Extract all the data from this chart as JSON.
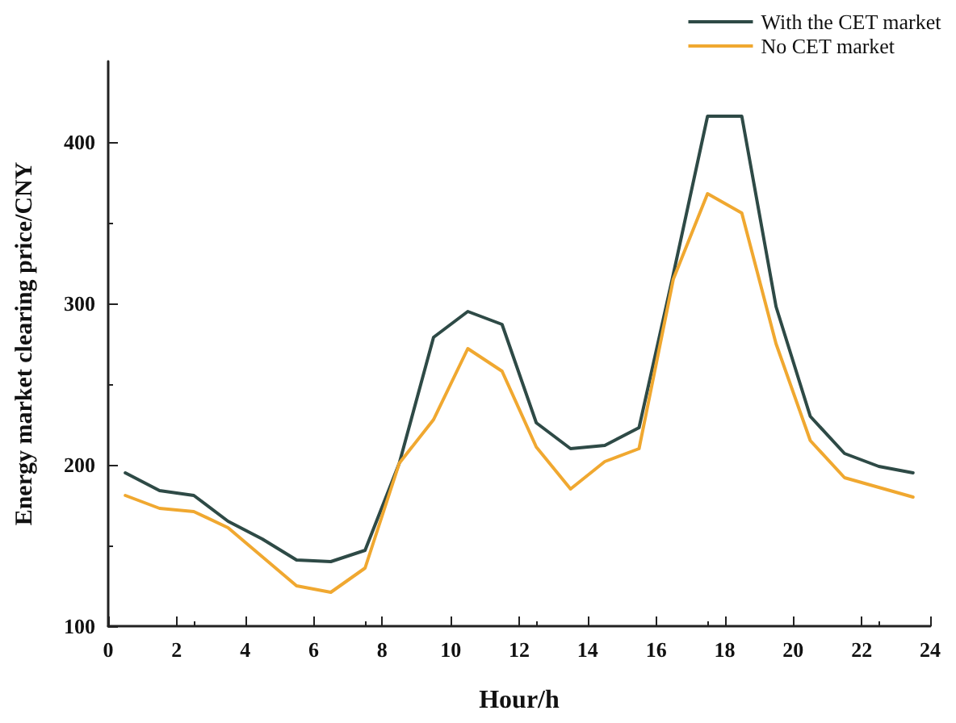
{
  "chart_data": {
    "type": "line",
    "xlabel": "Hour/h",
    "ylabel": "Energy market clearing price/CNY",
    "x": [
      0.5,
      1.5,
      2.5,
      3.5,
      4.5,
      5.5,
      6.5,
      7.5,
      8.5,
      9.5,
      10.5,
      11.5,
      12.5,
      13.5,
      14.5,
      15.5,
      16.5,
      17.5,
      18.5,
      19.5,
      20.5,
      21.5,
      22.5,
      23.5
    ],
    "series": [
      {
        "name": "With the CET market",
        "color": "#2e4a46",
        "values": [
          195,
          184,
          181,
          165,
          154,
          141,
          140,
          147,
          201,
          279,
          295,
          287,
          226,
          210,
          212,
          223,
          318,
          416,
          416,
          298,
          230,
          207,
          199,
          195
        ]
      },
      {
        "name": "No CET market",
        "color": "#f0a830",
        "values": [
          181,
          173,
          171,
          161,
          143,
          125,
          121,
          136,
          201,
          228,
          272,
          258,
          211,
          185,
          202,
          210,
          315,
          368,
          356,
          275,
          215,
          192,
          186,
          180
        ]
      }
    ],
    "xlim": [
      0,
      24
    ],
    "xticks": [
      0,
      2,
      4,
      6,
      8,
      10,
      12,
      14,
      16,
      18,
      20,
      22,
      24
    ],
    "ylim": [
      100,
      450
    ],
    "yticks": [
      100,
      200,
      300,
      400
    ],
    "grid": false,
    "legend": "top right",
    "marker": "none",
    "line_style": "solid"
  }
}
